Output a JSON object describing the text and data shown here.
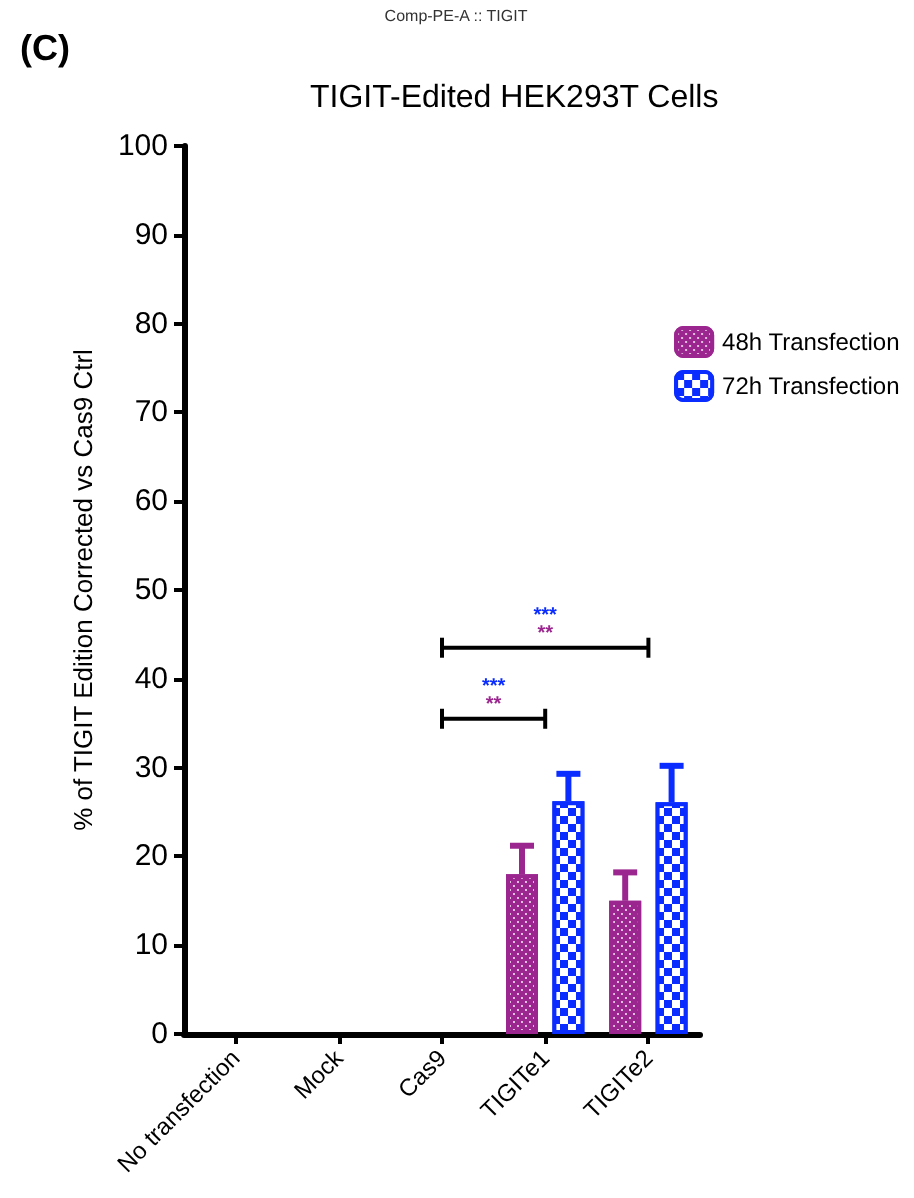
{
  "chart_data": {
    "type": "bar",
    "title": "TIGIT-Edited HEK293T Cells",
    "ylabel": "% of TIGIT Edition Corrected vs Cas9 Ctrl",
    "categories": [
      "No transfection",
      "Mock",
      "Cas9",
      "TIGITe1",
      "TIGITe2"
    ],
    "series": [
      {
        "name": "48h Transfection",
        "color": "#9b268f",
        "values": [
          null,
          null,
          null,
          18,
          15
        ],
        "errors": [
          null,
          null,
          null,
          [
            18,
            21.2
          ],
          [
            15,
            18.2
          ]
        ]
      },
      {
        "name": "72h Transfection",
        "color": "#0a2cff",
        "values": [
          null,
          null,
          null,
          26.2,
          26.1
        ],
        "errors": [
          null,
          null,
          null,
          [
            26.2,
            29.3
          ],
          [
            26.1,
            30.2
          ]
        ]
      }
    ],
    "ylim": [
      0,
      100
    ],
    "yticks": [
      0,
      10,
      20,
      30,
      40,
      50,
      60,
      70,
      80,
      90,
      100
    ],
    "grid": false,
    "legend": "top right",
    "annotations": [
      "Comp-PE-A :: TIGIT",
      "(C)",
      "***",
      "**",
      "***",
      "**"
    ]
  }
}
